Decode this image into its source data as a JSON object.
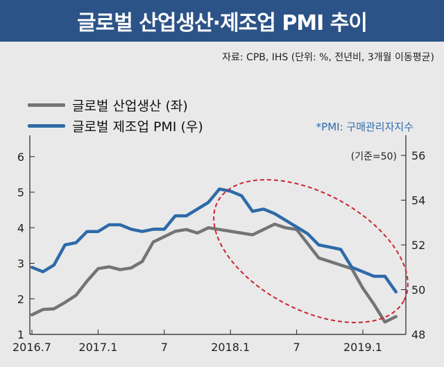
{
  "title": "글로벌 산업생산·제조업 PMI 추이",
  "source": "자료: CPB, IHS (단위: %, 전년비, 3개월 이동평균)",
  "pmi_note": "*PMI: 구매관리자지수",
  "unit_note": "(기준=50)",
  "colors": {
    "header": "#2c5387",
    "series_production": "#747474",
    "series_pmi": "#2e6aa8",
    "highlight": "#c8252d"
  },
  "chart_data": {
    "type": "line",
    "x": [
      "2016.7",
      "2016.8",
      "2016.9",
      "2016.10",
      "2016.11",
      "2016.12",
      "2017.1",
      "2017.2",
      "2017.3",
      "2017.4",
      "2017.5",
      "2017.6",
      "2017.7",
      "2017.8",
      "2017.9",
      "2017.10",
      "2017.11",
      "2017.12",
      "2018.1",
      "2018.2",
      "2018.3",
      "2018.4",
      "2018.5",
      "2018.6",
      "2018.7",
      "2018.8",
      "2018.9",
      "2018.10",
      "2018.11",
      "2018.12",
      "2019.1",
      "2019.2",
      "2019.3",
      "2019.4"
    ],
    "x_ticks": [
      "2016.7",
      "2017.1",
      "7",
      "2018.1",
      "7",
      "2019.1"
    ],
    "series": [
      {
        "name": "글로벌 산업생산 (좌)",
        "axis": "left",
        "values": [
          1.55,
          1.7,
          1.72,
          1.9,
          2.1,
          2.5,
          2.85,
          2.9,
          2.82,
          2.87,
          3.05,
          3.6,
          3.75,
          3.9,
          3.95,
          3.85,
          4.0,
          3.95,
          3.9,
          3.85,
          3.8,
          3.95,
          4.1,
          4.0,
          3.95,
          3.55,
          3.15,
          3.05,
          2.95,
          2.85,
          2.3,
          1.85,
          1.35,
          1.5
        ]
      },
      {
        "name": "글로벌 제조업 PMI (우)",
        "axis": "right",
        "values": [
          51.0,
          50.8,
          51.1,
          52.0,
          52.1,
          52.6,
          52.6,
          52.9,
          52.9,
          52.7,
          52.6,
          52.7,
          52.7,
          53.3,
          53.3,
          53.6,
          53.9,
          54.5,
          54.4,
          54.2,
          53.5,
          53.6,
          53.4,
          53.1,
          52.8,
          52.5,
          52.0,
          51.9,
          51.8,
          51.0,
          50.8,
          50.6,
          50.6,
          49.9
        ]
      }
    ],
    "y_left": {
      "ticks": [
        1,
        2,
        3,
        4,
        5,
        6
      ],
      "ylim": [
        1,
        6.6
      ]
    },
    "y_right": {
      "ticks": [
        48,
        50,
        52,
        54,
        56
      ],
      "ylim": [
        48,
        56.9
      ]
    },
    "grid": false,
    "legend_position": "top-left"
  }
}
